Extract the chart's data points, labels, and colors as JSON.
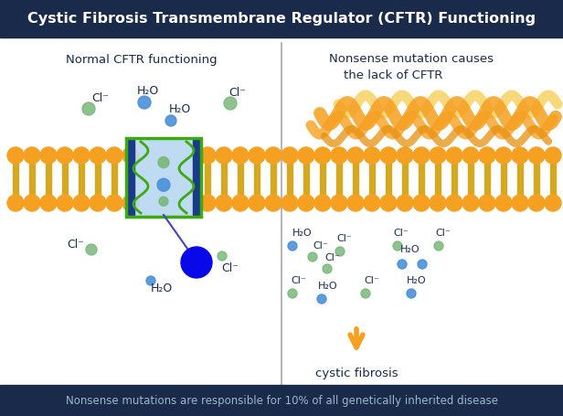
{
  "title": "Cystic Fibrosis Transmembrane Regulator (CFTR) Functioning",
  "title_color": "#1a2a4a",
  "title_fontsize": 11.5,
  "title_bg": "#1a2a4a",
  "footer_text": "Nonsense mutations are responsible for 10% of all genetically inherited disease",
  "footer_bg": "#1a2a4a",
  "footer_text_color": "#9ab8cc",
  "left_label": "Normal CFTR functioning",
  "label_color": "#1a2a4a",
  "orange_color": "#f5a020",
  "gold_color": "#d4a820",
  "blue_channel_color": "#b8d8f0",
  "dark_blue_color": "#1a3a8a",
  "green_squiggle_color": "#3aaa10",
  "cl_color": "#7ab87a",
  "water_color": "#4a90d9",
  "large_blue_circle": "#0808e8",
  "divider_color": "#aaaaaa",
  "cf_arrow_color": "#f5a020",
  "background_color": "#ffffff",
  "title_bar_bg": "#1a2a4a",
  "title_text_color": "#ffffff"
}
